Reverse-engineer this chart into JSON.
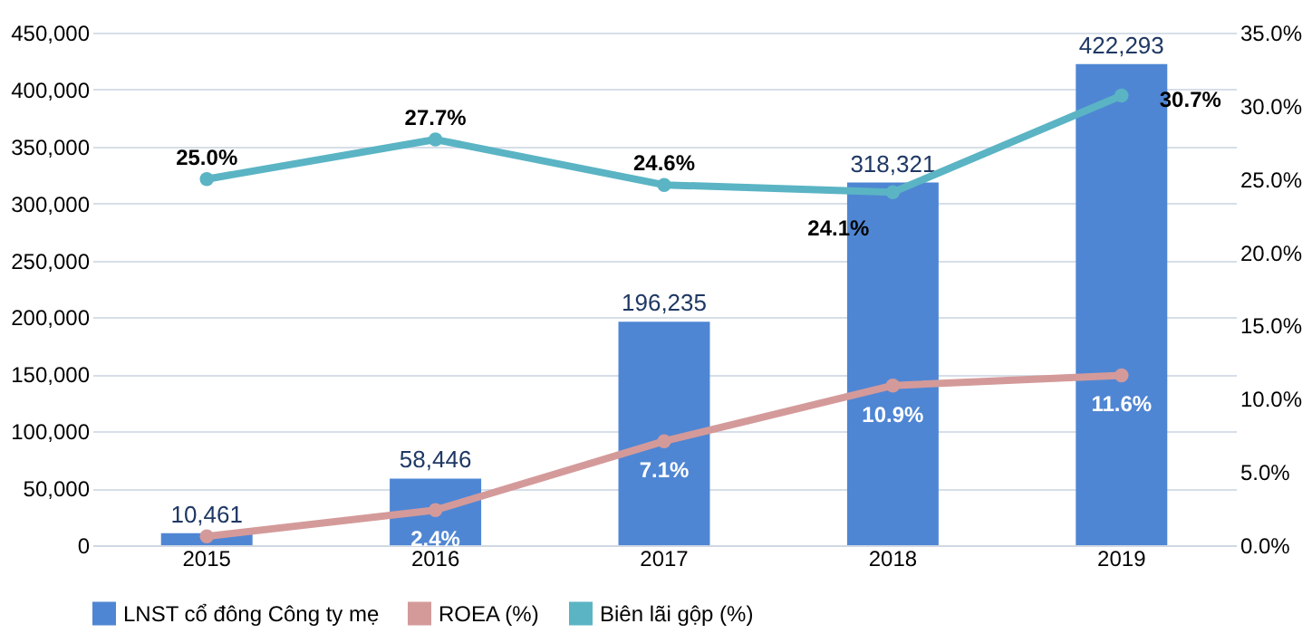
{
  "chart_data": {
    "type": "bar",
    "categories": [
      "2015",
      "2016",
      "2017",
      "2018",
      "2019"
    ],
    "series": [
      {
        "name": "LNST cổ đông Công ty mẹ",
        "type": "bar",
        "color": "#4f86d3",
        "values": [
          10461,
          58446,
          196235,
          318321,
          422293
        ],
        "value_labels": [
          "10,461",
          "58,446",
          "196,235",
          "318,321",
          "422,293"
        ]
      },
      {
        "name": "ROEA (%)",
        "type": "line",
        "axis": "y2",
        "color": "#d49a9a",
        "values": [
          0.6,
          2.4,
          7.1,
          10.9,
          11.6
        ],
        "value_labels": [
          null,
          "2.4%",
          "7.1%",
          "10.9%",
          "11.6%"
        ]
      },
      {
        "name": "Biên lãi gộp (%)",
        "type": "line",
        "axis": "y2",
        "color": "#5ab4c4",
        "values": [
          25.0,
          27.7,
          24.6,
          24.1,
          30.7
        ],
        "value_labels": [
          "25.0%",
          "27.7%",
          "24.6%",
          "24.1%",
          "30.7%"
        ]
      }
    ],
    "ylim": [
      0,
      450000
    ],
    "yticks": [
      {
        "value": 0,
        "label": "0"
      },
      {
        "value": 50000,
        "label": "50,000"
      },
      {
        "value": 100000,
        "label": "100,000"
      },
      {
        "value": 150000,
        "label": "150,000"
      },
      {
        "value": 200000,
        "label": "200,000"
      },
      {
        "value": 250000,
        "label": "250,000"
      },
      {
        "value": 300000,
        "label": "300,000"
      },
      {
        "value": 350000,
        "label": "350,000"
      },
      {
        "value": 400000,
        "label": "400,000"
      },
      {
        "value": 450000,
        "label": "450,000"
      }
    ],
    "y2lim": [
      0,
      35
    ],
    "y2ticks": [
      {
        "value": 0,
        "label": "0.0%"
      },
      {
        "value": 5,
        "label": "5.0%"
      },
      {
        "value": 10,
        "label": "10.0%"
      },
      {
        "value": 15,
        "label": "15.0%"
      },
      {
        "value": 20,
        "label": "20.0%"
      },
      {
        "value": 25,
        "label": "25.0%"
      },
      {
        "value": 30,
        "label": "30.0%"
      },
      {
        "value": 35,
        "label": "35.0%"
      }
    ],
    "grid": "y",
    "legend": "bottom",
    "marker": "circle"
  }
}
